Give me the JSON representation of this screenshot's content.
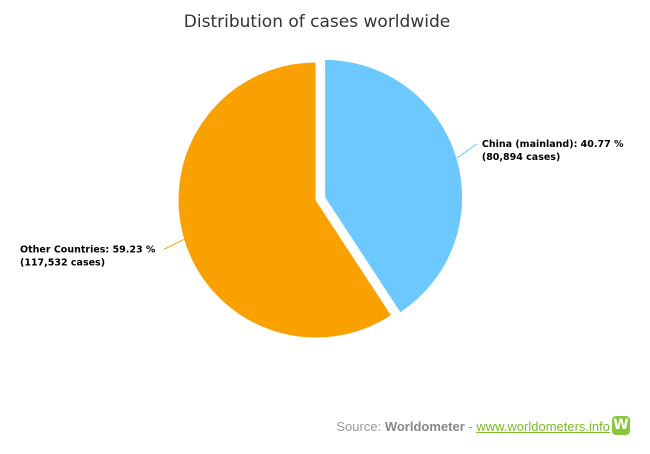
{
  "chart_data": {
    "type": "pie",
    "title": "Distribution of cases worldwide",
    "slices": [
      {
        "name": "China (mainland)",
        "percent": 40.77,
        "cases": "80,894",
        "label": "China (mainland): 40.77 %",
        "sublabel": "(80,894 cases)",
        "color": "#6cc8fe",
        "exploded": true
      },
      {
        "name": "Other Countries",
        "percent": 59.23,
        "cases": "117,532",
        "label": "Other Countries: 59.23 %",
        "sublabel": "(117,532 cases)",
        "color": "#f9a100",
        "exploded": false
      }
    ]
  },
  "source": {
    "prefix": "Source:",
    "name": "Worldometer",
    "sep": "-",
    "link": "www.worldometers.info",
    "logo": "W"
  }
}
